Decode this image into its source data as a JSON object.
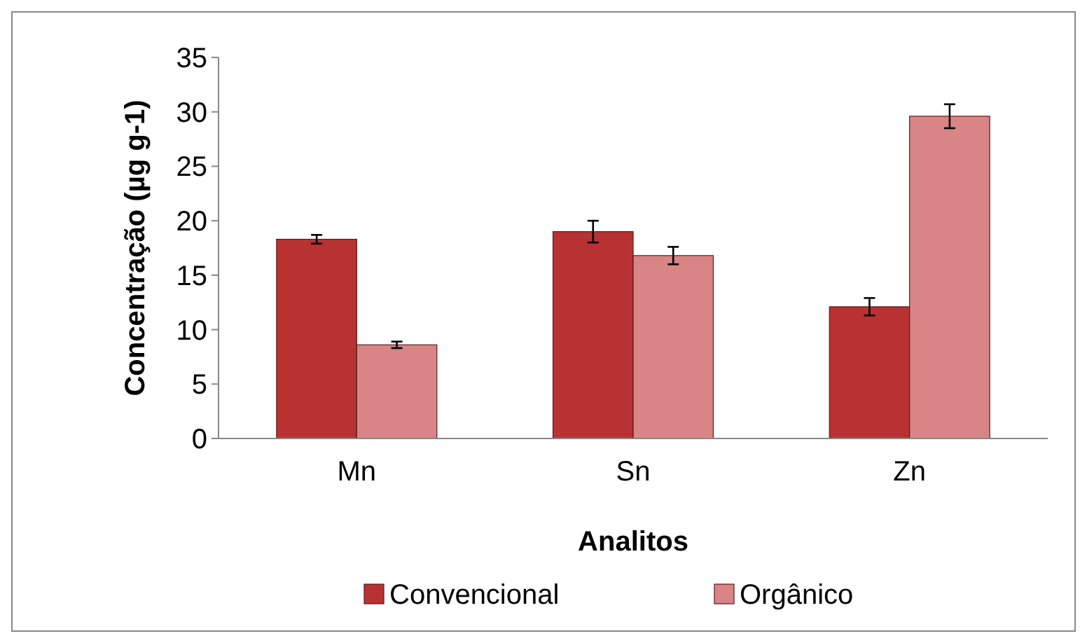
{
  "chart_data": {
    "type": "bar",
    "xlabel": "Analitos",
    "ylabel": "Concentração (µg g-1)",
    "categories": [
      "Mn",
      "Sn",
      "Zn"
    ],
    "series": [
      {
        "name": "Convencional",
        "color": "#b83232",
        "values": [
          18.3,
          19.0,
          12.1
        ],
        "errors": [
          0.4,
          1.0,
          0.8
        ]
      },
      {
        "name": "Orgânico",
        "color": "#d98585",
        "values": [
          8.6,
          16.8,
          29.6
        ],
        "errors": [
          0.3,
          0.8,
          1.1
        ]
      }
    ],
    "ylim": [
      0,
      35
    ],
    "yticks": [
      0,
      5,
      10,
      15,
      20,
      25,
      30,
      35
    ],
    "grid": false,
    "legend": "bottom"
  }
}
